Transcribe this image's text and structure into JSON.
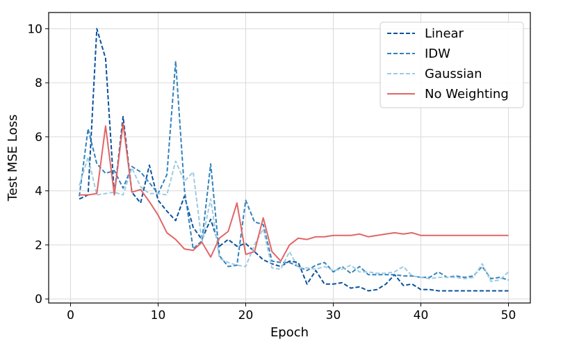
{
  "chart_data": {
    "type": "line",
    "xlabel": "Epoch",
    "ylabel": "Test MSE Loss",
    "xlim": [
      -2.5,
      52.5
    ],
    "ylim": [
      -0.15,
      10.6
    ],
    "xticks": [
      0,
      10,
      20,
      30,
      40,
      50
    ],
    "yticks": [
      0,
      2,
      4,
      6,
      8,
      10
    ],
    "grid": true,
    "legend_position": "top-right",
    "x": [
      1,
      2,
      3,
      4,
      5,
      6,
      7,
      8,
      9,
      10,
      11,
      12,
      13,
      14,
      15,
      16,
      17,
      18,
      19,
      20,
      21,
      22,
      23,
      24,
      25,
      26,
      27,
      28,
      29,
      30,
      31,
      32,
      33,
      34,
      35,
      36,
      37,
      38,
      39,
      40,
      41,
      42,
      43,
      44,
      45,
      46,
      47,
      48,
      49,
      50
    ],
    "series": [
      {
        "name": "Linear",
        "color": "#08519c",
        "dash": "dashed",
        "values": [
          3.7,
          3.85,
          10.0,
          8.9,
          3.85,
          6.75,
          3.95,
          3.55,
          4.95,
          3.65,
          3.25,
          2.9,
          3.8,
          2.65,
          2.2,
          2.95,
          1.95,
          2.2,
          1.95,
          2.05,
          1.75,
          1.45,
          1.3,
          1.2,
          1.4,
          1.35,
          0.55,
          1.05,
          0.55,
          0.55,
          0.6,
          0.4,
          0.45,
          0.3,
          0.35,
          0.55,
          0.9,
          0.5,
          0.55,
          0.35,
          0.35,
          0.3,
          0.3,
          0.3,
          0.3,
          0.3,
          0.3,
          0.3,
          0.3,
          0.3
        ]
      },
      {
        "name": "IDW",
        "color": "#3182bd",
        "dash": "dashed",
        "values": [
          3.8,
          6.3,
          5.0,
          4.65,
          4.75,
          4.1,
          4.9,
          4.7,
          4.3,
          3.9,
          4.6,
          8.8,
          4.05,
          1.85,
          2.15,
          5.0,
          1.6,
          1.2,
          1.25,
          3.65,
          2.85,
          2.75,
          1.4,
          1.35,
          1.35,
          1.2,
          1.05,
          1.25,
          1.35,
          1.0,
          1.2,
          0.95,
          1.2,
          0.9,
          0.9,
          0.9,
          0.9,
          0.85,
          0.85,
          0.8,
          0.8,
          1.0,
          0.8,
          0.85,
          0.8,
          0.85,
          1.2,
          0.75,
          0.8,
          0.7
        ]
      },
      {
        "name": "Gaussian",
        "color": "#9ecae1",
        "dash": "dashed",
        "values": [
          4.2,
          5.25,
          3.85,
          3.9,
          3.95,
          3.85,
          4.85,
          4.15,
          3.9,
          3.9,
          3.85,
          5.1,
          4.35,
          4.7,
          2.1,
          3.7,
          1.5,
          1.35,
          1.25,
          1.2,
          2.0,
          2.6,
          1.15,
          1.1,
          1.75,
          1.15,
          1.15,
          1.1,
          1.2,
          1.05,
          1.1,
          1.25,
          1.0,
          1.0,
          0.95,
          0.95,
          1.0,
          1.2,
          0.85,
          0.8,
          0.75,
          0.8,
          0.8,
          0.8,
          0.75,
          0.8,
          1.3,
          0.65,
          0.7,
          1.0
        ]
      },
      {
        "name": "No Weighting",
        "color": "#e06666",
        "dash": "solid",
        "values": [
          3.85,
          3.85,
          3.9,
          6.4,
          3.85,
          6.5,
          3.95,
          4.05,
          3.6,
          3.1,
          2.45,
          2.2,
          1.85,
          1.8,
          2.1,
          1.55,
          2.25,
          2.5,
          3.55,
          1.65,
          1.75,
          3.0,
          1.75,
          1.4,
          2.0,
          2.25,
          2.2,
          2.3,
          2.3,
          2.35,
          2.35,
          2.35,
          2.4,
          2.3,
          2.35,
          2.4,
          2.45,
          2.4,
          2.45,
          2.35,
          2.35,
          2.35,
          2.35,
          2.35,
          2.35,
          2.35,
          2.35,
          2.35,
          2.35,
          2.35
        ]
      }
    ]
  }
}
